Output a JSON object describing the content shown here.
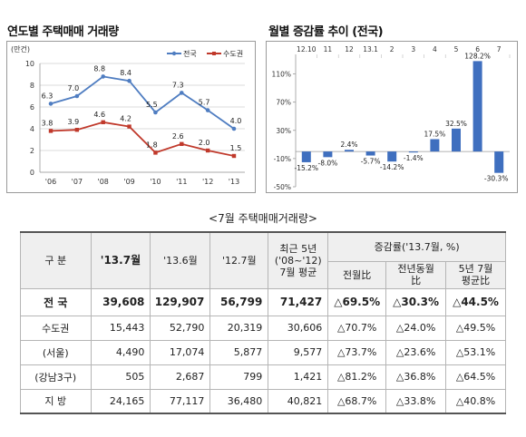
{
  "left_chart": {
    "title": "연도별 주택매매 거래량",
    "unit_label": "(만건)",
    "legend": [
      {
        "name": "전국",
        "color": "#4f7dc1"
      },
      {
        "name": "수도권",
        "color": "#c0392b"
      }
    ]
  },
  "right_chart": {
    "title": "월별 증감률 추이 (전국)"
  },
  "table": {
    "title": "<7월 주택매매거래량>",
    "headers": {
      "category": "구 분",
      "col1": "'13.7월",
      "col2": "'13.6월",
      "col3": "'12.7월",
      "col4_l1": "최근 5년",
      "col4_l2": "('08~'12)",
      "col4_l3": "7월 평균",
      "change_group": "증감률('13.7월, %)",
      "ch1": "전월比",
      "ch2_l1": "전년동월",
      "ch2_l2": "比",
      "ch3_l1": "5년 7월",
      "ch3_l2": "평균比"
    },
    "rows": [
      {
        "name": "전 국",
        "c1": "39,608",
        "c2": "129,907",
        "c3": "56,799",
        "c4": "71,427",
        "p1": "△69.5%",
        "p2": "△30.3%",
        "p3": "△44.5%"
      },
      {
        "name": "수도권",
        "c1": "15,443",
        "c2": "52,790",
        "c3": "20,319",
        "c4": "30,606",
        "p1": "△70.7%",
        "p2": "△24.0%",
        "p3": "△49.5%"
      },
      {
        "name": "(서울)",
        "c1": "4,490",
        "c2": "17,074",
        "c3": "5,877",
        "c4": "9,577",
        "p1": "△73.7%",
        "p2": "△23.6%",
        "p3": "△53.1%"
      },
      {
        "name": "(강남3구)",
        "c1": "505",
        "c2": "2,687",
        "c3": "799",
        "c4": "1,421",
        "p1": "△81.2%",
        "p2": "△36.8%",
        "p3": "△64.5%"
      },
      {
        "name": "지 방",
        "c1": "24,165",
        "c2": "77,117",
        "c3": "36,480",
        "c4": "40,821",
        "p1": "△68.7%",
        "p2": "△33.8%",
        "p3": "△40.8%"
      }
    ]
  },
  "chart_data": [
    {
      "type": "line",
      "title": "연도별 주택매매 거래량",
      "ylabel": "(만건)",
      "categories": [
        "'06",
        "'07",
        "'08",
        "'09",
        "'10",
        "'11",
        "'12",
        "'13"
      ],
      "series": [
        {
          "name": "전국",
          "values": [
            6.3,
            7.0,
            8.8,
            8.4,
            5.5,
            7.3,
            5.7,
            4.0
          ],
          "labels": [
            "6.3",
            "7.0",
            "8.8",
            "8.4",
            "5.5",
            "7.3",
            "5.7",
            "4.0"
          ]
        },
        {
          "name": "수도권",
          "values": [
            3.8,
            3.9,
            4.6,
            4.2,
            1.8,
            2.6,
            2.0,
            1.5
          ],
          "labels": [
            "3.8",
            "3.9",
            "4.6",
            "4.2",
            "1.8",
            "2.6",
            "2.0",
            "1.5"
          ]
        }
      ],
      "yticks": [
        "0",
        "2",
        "4",
        "6",
        "8",
        "10"
      ],
      "ylim": [
        0,
        10
      ],
      "grid": true,
      "legend_position": "top-right"
    },
    {
      "type": "bar",
      "title": "월별 증감률 추이 (전국)",
      "categories": [
        "12.10",
        "11",
        "12",
        "13.1",
        "2",
        "3",
        "4",
        "5",
        "6",
        "7"
      ],
      "values": [
        -15.2,
        -8.0,
        2.4,
        -5.7,
        -14.2,
        -1.4,
        17.5,
        32.5,
        128.2,
        -30.3
      ],
      "labels": [
        "-15.2%",
        "-8.0%",
        "2.4%",
        "-5.7%",
        "-14.2%",
        "-1.4%",
        "17.5%",
        "32.5%",
        "128.2%",
        "-30.3%"
      ],
      "yticks": [
        "110%",
        "70%",
        "30%",
        "-10%",
        "-50%"
      ],
      "ylim": [
        -50,
        130
      ],
      "grid": false
    }
  ]
}
